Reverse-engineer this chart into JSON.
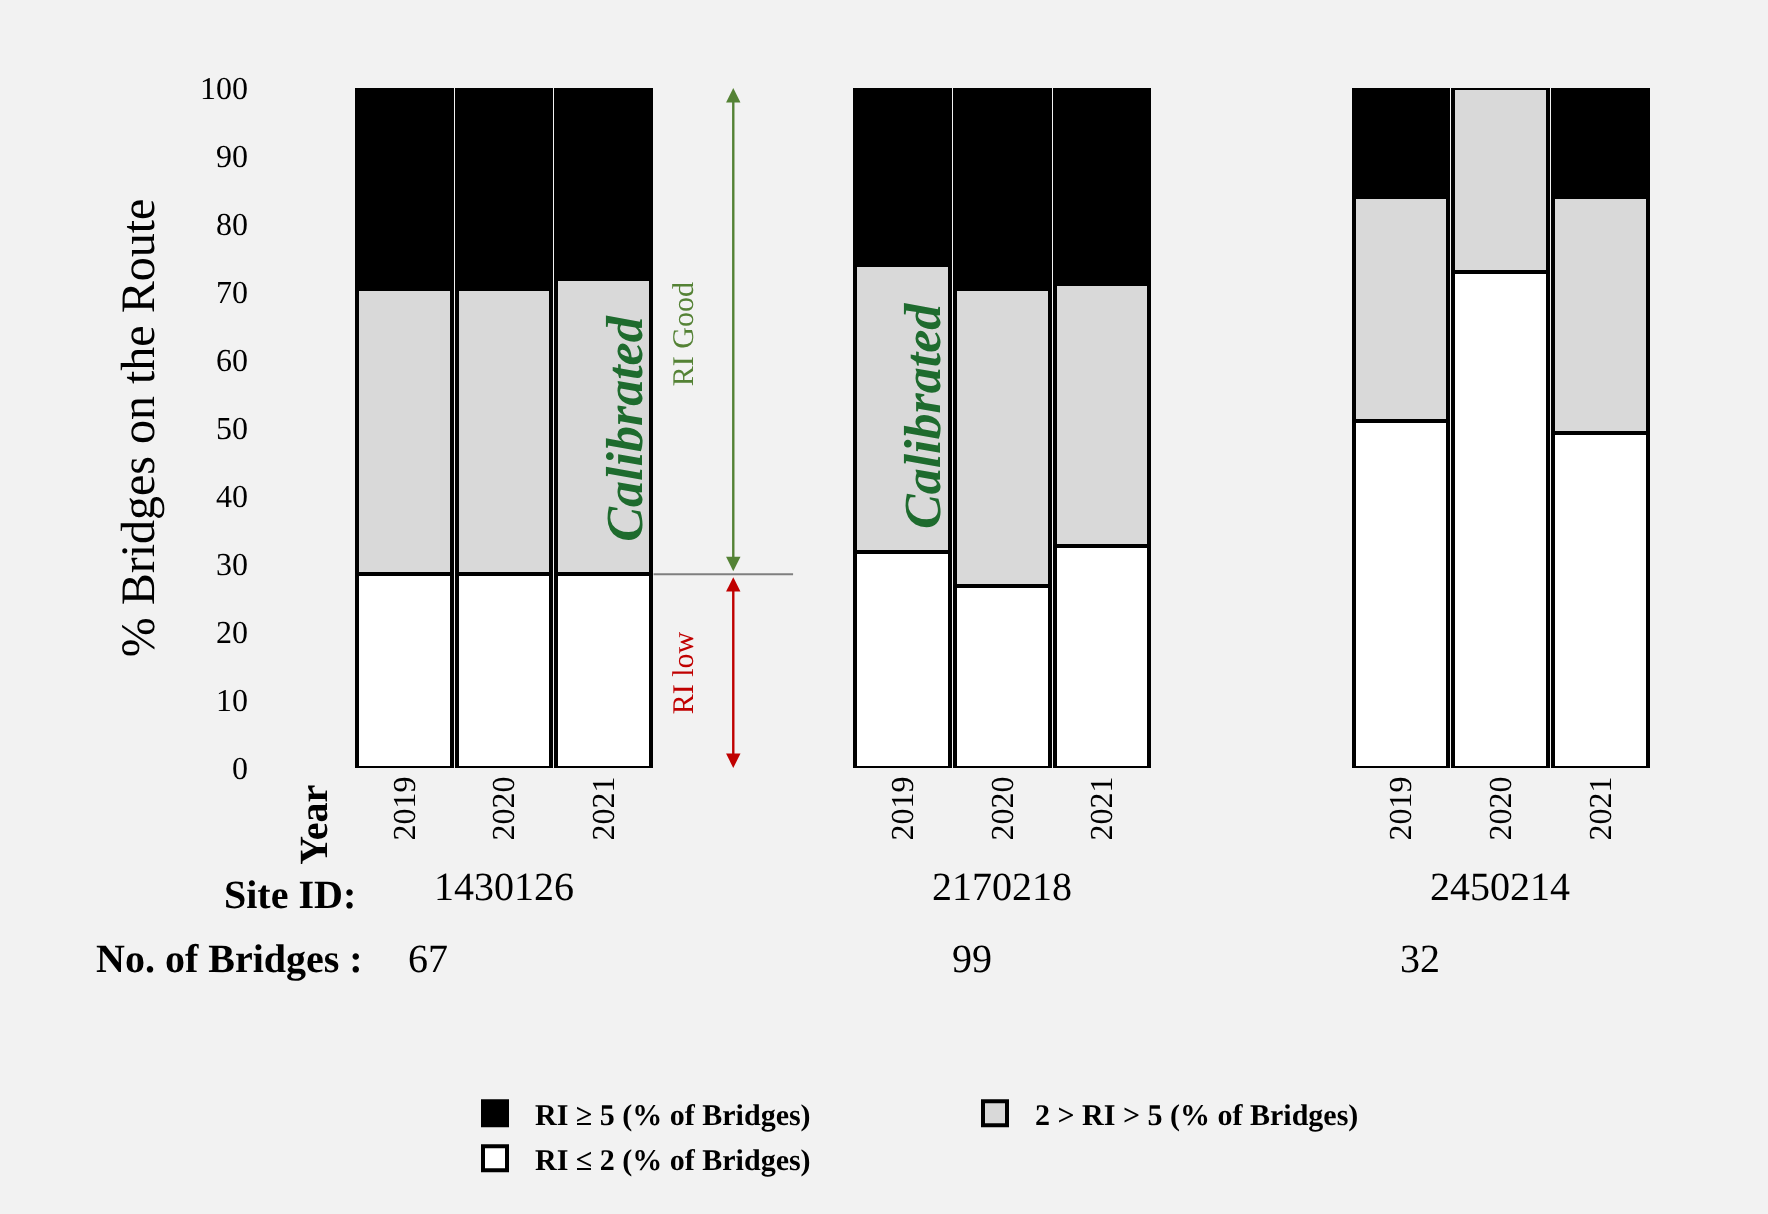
{
  "chart_data": {
    "type": "bar",
    "stacked": true,
    "ylabel": "% Bridges on the Route",
    "categories": [
      "2019",
      "2020",
      "2021",
      null,
      null,
      "2019",
      "2020",
      "2021",
      null,
      null,
      "2019",
      "2020",
      "2021"
    ],
    "series": [
      {
        "name": "RI ≤ 2 (% of Bridges)",
        "color": "#ffffff",
        "values": [
          28.5,
          28.5,
          28.5,
          null,
          null,
          31.8,
          26.7,
          32.6,
          null,
          null,
          51.1,
          73,
          49.3
        ]
      },
      {
        "name": "2 > RI > 5 (% of Bridges)",
        "color": "#d9d9d9",
        "values": [
          42,
          42,
          43.4,
          null,
          null,
          42.1,
          43.8,
          38.6,
          null,
          null,
          32.8,
          27,
          34.6
        ]
      },
      {
        "name": "RI ≥ 5 (% of Bridges)",
        "color": "#000000",
        "values": [
          29.5,
          29.5,
          28.1,
          null,
          null,
          26.1,
          29.5,
          28.8,
          null,
          null,
          16.1,
          0,
          16.1
        ]
      }
    ],
    "ylim": [
      0,
      100
    ],
    "yticks": [
      0,
      10,
      20,
      30,
      40,
      50,
      60,
      70,
      80,
      90,
      100
    ],
    "grid": false,
    "legend": "bottom",
    "ref_lines": [
      {
        "axis": "y",
        "value": 28.5,
        "color": "#7f7f7f"
      }
    ],
    "annotations": [
      "Year",
      "Site ID:",
      "1430126",
      "2170218",
      "2450214",
      "No. of Bridges :",
      "67",
      "99",
      "32",
      "Calibrated",
      "Calibrated",
      "RI Good",
      "RI low"
    ]
  }
}
